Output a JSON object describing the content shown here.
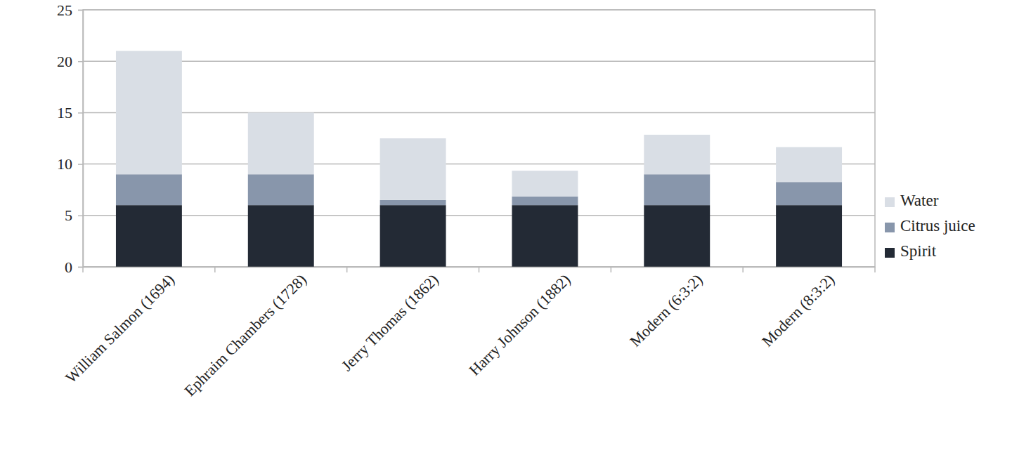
{
  "chart_data": {
    "type": "bar",
    "stacked": true,
    "grid": true,
    "legend": "right",
    "categories": [
      "William Salmon (1694)",
      "Ephraim Chambers (1728)",
      "Jerry Thomas (1862)",
      "Harry Johnson (1882)",
      "Modern (6:3:2)",
      "Modern (8:3:2)"
    ],
    "series": [
      {
        "name": "Spirit",
        "color": "#232a35",
        "values": [
          6,
          6,
          6,
          6,
          6,
          6
        ]
      },
      {
        "name": "Citrus juice",
        "color": "#8896ab",
        "values": [
          3,
          3,
          0.5,
          0.85,
          3,
          2.25
        ]
      },
      {
        "name": "Water",
        "color": "#d9dee5",
        "values": [
          12,
          6,
          6,
          2.5,
          3.85,
          3.4
        ]
      }
    ],
    "ylim": [
      0,
      25
    ],
    "yticks": [
      0,
      5,
      10,
      15,
      20,
      25
    ]
  }
}
